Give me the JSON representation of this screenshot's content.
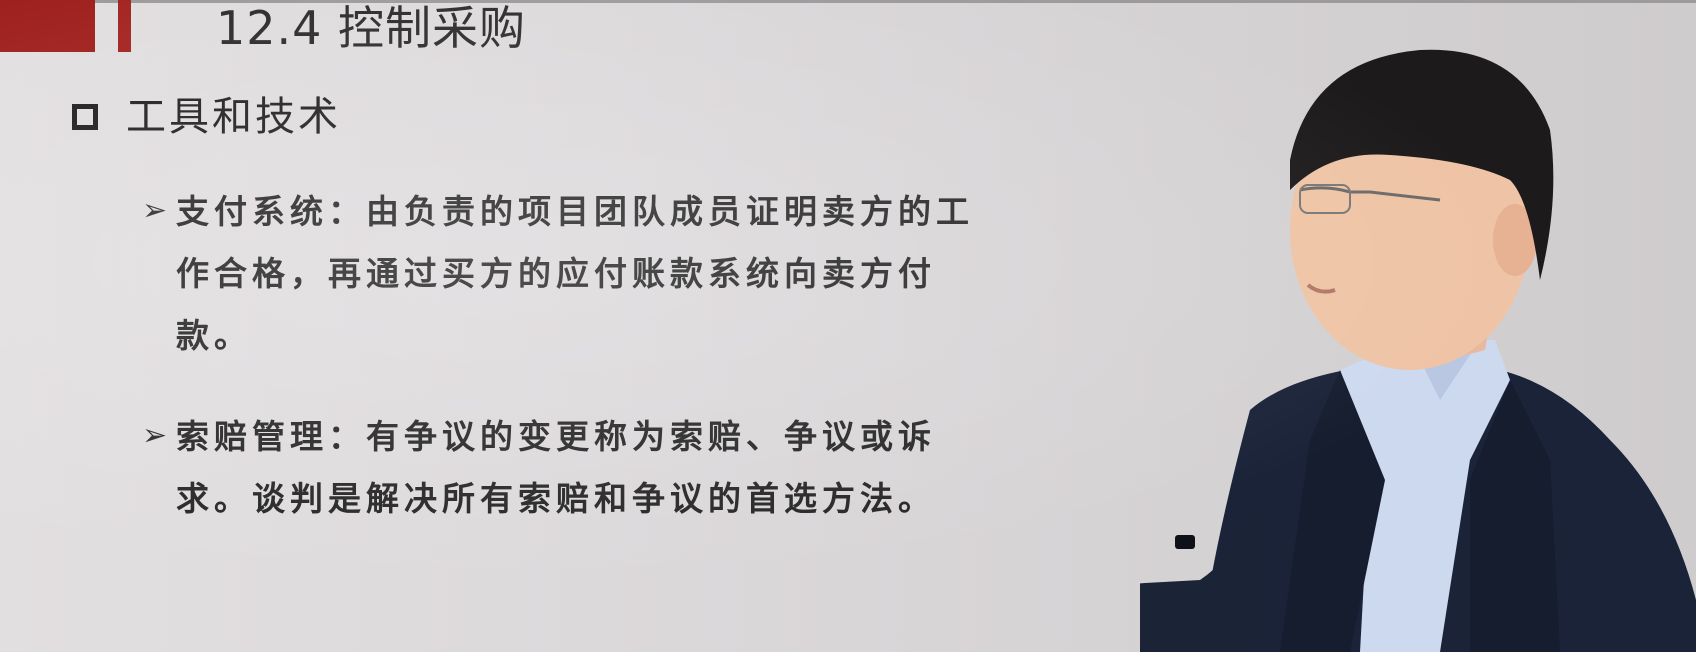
{
  "slide": {
    "title": "12.4 控制采购",
    "section": "工具和技术",
    "bullets": [
      {
        "marker": "➢",
        "text": "支付系统：由负责的项目团队成员证明卖方的工作合格，再通过买方的应付账款系统向卖方付款。"
      },
      {
        "marker": "➢",
        "text": "索赔管理：有争议的变更称为索赔、争议或诉求。谈判是解决所有索赔和争议的首选方法。"
      }
    ]
  },
  "colors": {
    "brand_red": "#9e1e1c",
    "background": "#dcd9db",
    "text": "#262626",
    "suit": "#1a2338",
    "shirt": "#cdd9ef"
  }
}
